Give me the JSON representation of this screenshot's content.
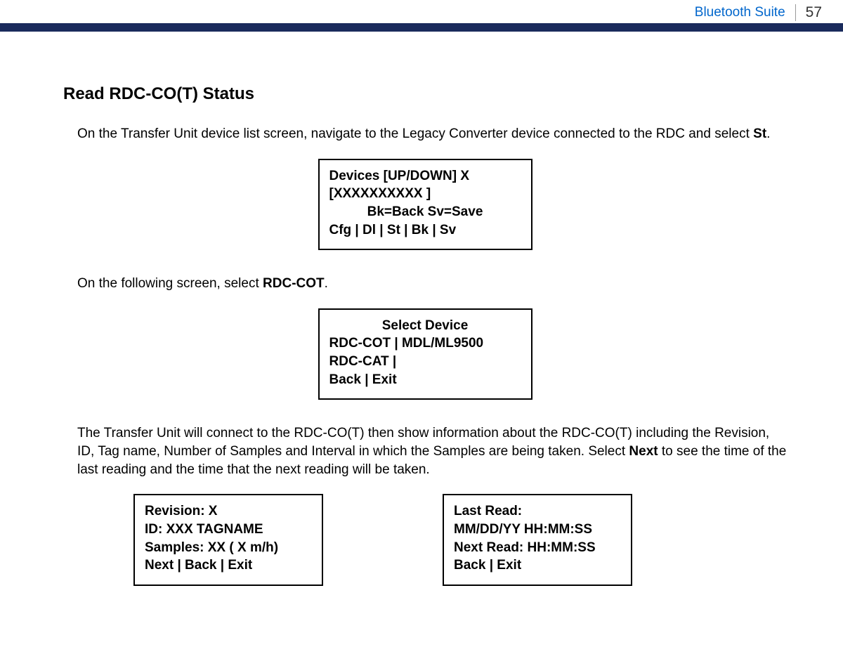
{
  "header": {
    "title": "Bluetooth Suite",
    "page_number": "57"
  },
  "section": {
    "heading": "Read RDC-CO(T) Status",
    "para1_prefix": "On the Transfer Unit device list screen, navigate to the Legacy Converter device connected to the RDC and select ",
    "para1_bold": "St",
    "para1_suffix": ".",
    "para2_prefix": "On the following screen, select ",
    "para2_bold": "RDC-COT",
    "para2_suffix": ".",
    "para3_prefix": "The Transfer Unit will connect to the RDC-CO(T) then show information about the RDC-CO(T) including the Revision, ID, Tag name, Number of Samples and Interval in which the Samples are being taken. Select ",
    "para3_bold": "Next",
    "para3_suffix": " to see the time of the last reading and the time that the next reading will be taken."
  },
  "screens": {
    "devices": {
      "line1": "Devices [UP/DOWN]    X",
      "line2": "[XXXXXXXXXX              ]",
      "line3": "Bk=Back  Sv=Save",
      "line4": "Cfg  |  Dl  |  St  |  Bk  |  Sv"
    },
    "select_device": {
      "line1": "Select Device",
      "line2": "RDC-COT  | MDL/ML9500",
      "line3": "RDC-CAT  |",
      "line4": "Back         |   Exit"
    },
    "revision": {
      "line1": "Revision: X",
      "line2": "ID: XXX TAGNAME",
      "line3": "Samples: XX ( X m/h)",
      "line4": "Next   |   Back   |   Exit"
    },
    "last_read": {
      "line1": "Last Read:",
      "line2": " MM/DD/YY  HH:MM:SS",
      "line3": "Next Read: HH:MM:SS",
      "line4": "Back   |   Exit"
    }
  },
  "colors": {
    "header_bar": "#1a2b5c",
    "link_blue": "#0066cc",
    "text": "#000000"
  }
}
